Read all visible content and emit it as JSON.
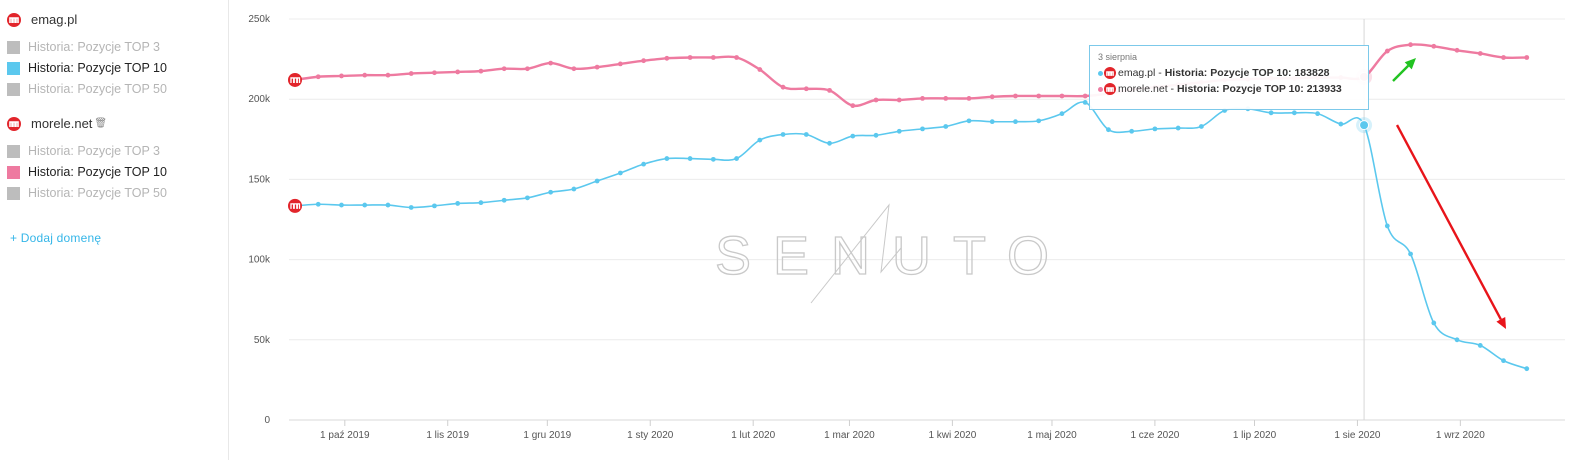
{
  "sidebar": {
    "domains": [
      {
        "name": "emag.pl",
        "logo_icon": "m-logo-icon",
        "items": [
          {
            "label": "Historia: Pozycje TOP 3",
            "active": false
          },
          {
            "label": "Historia: Pozycje TOP 10",
            "active": true,
            "color": "#5bc8ee"
          },
          {
            "label": "Historia: Pozycje TOP 50",
            "active": false
          }
        ]
      },
      {
        "name": "morele.net",
        "logo_icon": "m-logo-icon",
        "extra_icon": "trash-icon",
        "items": [
          {
            "label": "Historia: Pozycje TOP 3",
            "active": false
          },
          {
            "label": "Historia: Pozycje TOP 10",
            "active": true,
            "color": "#ee7aa0"
          },
          {
            "label": "Historia: Pozycje TOP 50",
            "active": false
          }
        ]
      }
    ],
    "add_domain_label": "+ Dodaj domenę"
  },
  "watermark": "SENUTO",
  "tooltip": {
    "date": "3 sierpnia",
    "rows": [
      {
        "domain": "emag.pl",
        "metric": "Historia: Pozycje TOP 10",
        "value": "183828",
        "color": "#5bc8ee"
      },
      {
        "domain": "morele.net",
        "metric": "Historia: Pozycje TOP 10",
        "value": "213933",
        "color": "#ee7aa0"
      }
    ]
  },
  "colors": {
    "series_emag": "#5bc8ee",
    "series_morele": "#ee7aa0",
    "arrow_down": "#e8141a",
    "arrow_up": "#22c322",
    "grid": "#ececec"
  },
  "chart_data": {
    "type": "line",
    "x_tick_labels": [
      "1 paź 2019",
      "1 lis 2019",
      "1 gru 2019",
      "1 sty 2020",
      "1 lut 2020",
      "1 mar 2020",
      "1 kwi 2020",
      "1 maj 2020",
      "1 cze 2020",
      "1 lip 2020",
      "1 sie 2020",
      "1 wrz 2020"
    ],
    "y_tick_labels": [
      "0",
      "50k",
      "100k",
      "150k",
      "200k",
      "250k"
    ],
    "ylim": [
      0,
      250000
    ],
    "xlim": [
      "2019-09-16",
      "2020-09-28"
    ],
    "highlight_date": "2020-08-03",
    "grid": true,
    "series": [
      {
        "name": "emag.pl - Historia: Pozycje TOP 10",
        "color": "#5bc8ee",
        "points": [
          [
            "2019-09-16",
            133500
          ],
          [
            "2019-09-23",
            134500
          ],
          [
            "2019-09-30",
            134000
          ],
          [
            "2019-10-07",
            134000
          ],
          [
            "2019-10-14",
            134000
          ],
          [
            "2019-10-21",
            132500
          ],
          [
            "2019-10-28",
            133500
          ],
          [
            "2019-11-04",
            135000
          ],
          [
            "2019-11-11",
            135500
          ],
          [
            "2019-11-18",
            137000
          ],
          [
            "2019-11-25",
            138500
          ],
          [
            "2019-12-02",
            142000
          ],
          [
            "2019-12-09",
            144000
          ],
          [
            "2019-12-16",
            149000
          ],
          [
            "2019-12-23",
            154000
          ],
          [
            "2019-12-30",
            159500
          ],
          [
            "2020-01-06",
            163000
          ],
          [
            "2020-01-13",
            163000
          ],
          [
            "2020-01-20",
            162500
          ],
          [
            "2020-01-27",
            163000
          ],
          [
            "2020-02-03",
            174500
          ],
          [
            "2020-02-10",
            178000
          ],
          [
            "2020-02-17",
            178000
          ],
          [
            "2020-02-24",
            172500
          ],
          [
            "2020-03-02",
            177000
          ],
          [
            "2020-03-09",
            177500
          ],
          [
            "2020-03-16",
            180000
          ],
          [
            "2020-03-23",
            181500
          ],
          [
            "2020-03-30",
            183000
          ],
          [
            "2020-04-06",
            186500
          ],
          [
            "2020-04-13",
            186000
          ],
          [
            "2020-04-20",
            186000
          ],
          [
            "2020-04-27",
            186500
          ],
          [
            "2020-05-04",
            191000
          ],
          [
            "2020-05-11",
            198000
          ],
          [
            "2020-05-18",
            181000
          ],
          [
            "2020-05-25",
            180000
          ],
          [
            "2020-06-01",
            181500
          ],
          [
            "2020-06-08",
            182000
          ],
          [
            "2020-06-15",
            183000
          ],
          [
            "2020-06-22",
            193000
          ],
          [
            "2020-06-29",
            194000
          ],
          [
            "2020-07-06",
            191500
          ],
          [
            "2020-07-13",
            191500
          ],
          [
            "2020-07-20",
            191000
          ],
          [
            "2020-07-27",
            184500
          ],
          [
            "2020-08-03",
            183828
          ],
          [
            "2020-08-10",
            121000
          ],
          [
            "2020-08-17",
            103500
          ],
          [
            "2020-08-24",
            60500
          ],
          [
            "2020-08-31",
            50000
          ],
          [
            "2020-09-07",
            46500
          ],
          [
            "2020-09-14",
            37000
          ],
          [
            "2020-09-21",
            32000
          ]
        ]
      },
      {
        "name": "morele.net - Historia: Pozycje TOP 10",
        "color": "#ee7aa0",
        "points": [
          [
            "2019-09-16",
            212000
          ],
          [
            "2019-09-23",
            214000
          ],
          [
            "2019-09-30",
            214500
          ],
          [
            "2019-10-07",
            215000
          ],
          [
            "2019-10-14",
            215000
          ],
          [
            "2019-10-21",
            216000
          ],
          [
            "2019-10-28",
            216500
          ],
          [
            "2019-11-04",
            217000
          ],
          [
            "2019-11-11",
            217500
          ],
          [
            "2019-11-18",
            219000
          ],
          [
            "2019-11-25",
            219000
          ],
          [
            "2019-12-02",
            222500
          ],
          [
            "2019-12-09",
            219000
          ],
          [
            "2019-12-16",
            220000
          ],
          [
            "2019-12-23",
            222000
          ],
          [
            "2019-12-30",
            224000
          ],
          [
            "2020-01-06",
            225500
          ],
          [
            "2020-01-13",
            226000
          ],
          [
            "2020-01-20",
            226000
          ],
          [
            "2020-01-27",
            226000
          ],
          [
            "2020-02-03",
            218500
          ],
          [
            "2020-02-10",
            207500
          ],
          [
            "2020-02-17",
            206500
          ],
          [
            "2020-02-24",
            205500
          ],
          [
            "2020-03-02",
            196000
          ],
          [
            "2020-03-09",
            199500
          ],
          [
            "2020-03-16",
            199500
          ],
          [
            "2020-03-23",
            200500
          ],
          [
            "2020-03-30",
            200500
          ],
          [
            "2020-04-06",
            200500
          ],
          [
            "2020-04-13",
            201500
          ],
          [
            "2020-04-20",
            202000
          ],
          [
            "2020-04-27",
            202000
          ],
          [
            "2020-05-04",
            202000
          ],
          [
            "2020-05-11",
            202000
          ],
          [
            "2020-05-18",
            203500
          ],
          [
            "2020-05-25",
            206000
          ],
          [
            "2020-06-01",
            207500
          ],
          [
            "2020-06-08",
            209000
          ],
          [
            "2020-06-15",
            210500
          ],
          [
            "2020-06-22",
            212000
          ],
          [
            "2020-06-29",
            212500
          ],
          [
            "2020-07-06",
            213000
          ],
          [
            "2020-07-13",
            213000
          ],
          [
            "2020-07-20",
            213500
          ],
          [
            "2020-07-27",
            213500
          ],
          [
            "2020-08-03",
            213933
          ],
          [
            "2020-08-10",
            230000
          ],
          [
            "2020-08-17",
            234000
          ],
          [
            "2020-08-24",
            233000
          ],
          [
            "2020-08-31",
            230500
          ],
          [
            "2020-09-07",
            228500
          ],
          [
            "2020-09-14",
            226000
          ],
          [
            "2020-09-21",
            226000
          ]
        ]
      }
    ],
    "annotations": [
      {
        "type": "arrow",
        "direction": "down",
        "color": "#e8141a",
        "series": "emag.pl",
        "from": "2020-08-03",
        "to": "2020-09-14"
      },
      {
        "type": "arrow",
        "direction": "up",
        "color": "#22c322",
        "series": "morele.net",
        "from": "2020-08-03",
        "to": "2020-08-17"
      }
    ]
  }
}
